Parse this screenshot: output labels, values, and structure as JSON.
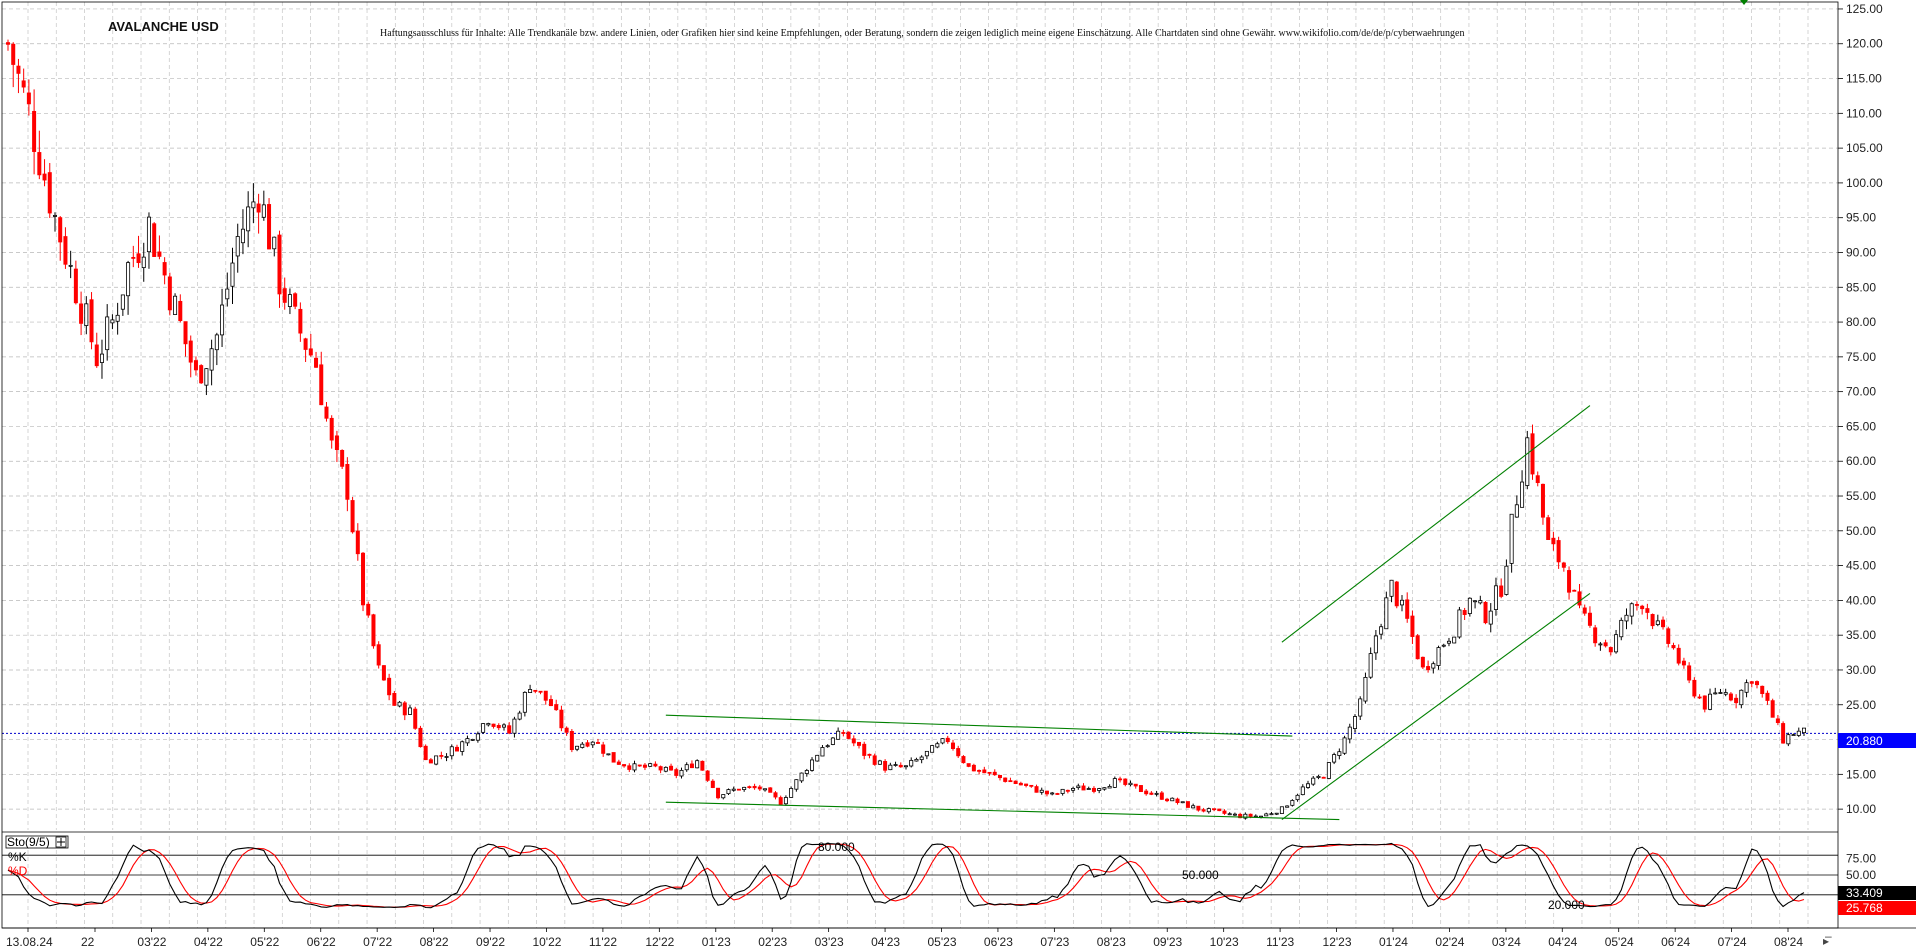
{
  "chart_data": [
    {
      "type": "candlestick",
      "title": "AVALANCHE USD",
      "subtitle": "Haftungsausschluss für Inhalte: Alle Trendkanäle bzw. andere Linien, oder Grafiken hier sind keine Empfehlungen, oder Beratung, sondern die zeigen lediglich meine eigene Einschätzung. Alle Chartdaten sind ohne Gewähr.  www.wikifolio.com/de/de/p/cyberwaehrungen",
      "x_tick_labels": [
        "13.08.24",
        "22",
        "03'22",
        "04'22",
        "05'22",
        "06'22",
        "07'22",
        "08'22",
        "09'22",
        "10'22",
        "11'22",
        "12'22",
        "01'23",
        "02'23",
        "03'23",
        "04'23",
        "05'23",
        "06'23",
        "07'23",
        "08'23",
        "09'23",
        "10'23",
        "11'23",
        "12'23",
        "01'24",
        "02'24",
        "03'24",
        "04'24",
        "05'24",
        "06'24",
        "07'24",
        "08'24"
      ],
      "y_ticks": [
        "125.00",
        "120.00",
        "115.00",
        "110.00",
        "105.00",
        "100.00",
        "95.00",
        "90.00",
        "85.00",
        "80.00",
        "75.00",
        "70.00",
        "65.00",
        "60.00",
        "55.00",
        "50.00",
        "45.00",
        "40.00",
        "35.00",
        "30.00",
        "25.00",
        "20.00",
        "15.00",
        "10.00"
      ],
      "ylim": [
        7,
        126
      ],
      "current_price": "20.880",
      "price_path": [
        [
          0,
          120
        ],
        [
          4,
          110
        ],
        [
          9,
          95
        ],
        [
          13,
          85
        ],
        [
          17,
          75
        ],
        [
          20,
          80
        ],
        [
          23,
          88
        ],
        [
          27,
          94
        ],
        [
          32,
          82
        ],
        [
          36,
          72
        ],
        [
          40,
          78
        ],
        [
          44,
          92
        ],
        [
          48,
          99
        ],
        [
          52,
          86
        ],
        [
          55,
          80
        ],
        [
          59,
          74
        ],
        [
          62,
          62
        ],
        [
          65,
          56
        ],
        [
          68,
          40
        ],
        [
          71,
          30
        ],
        [
          74,
          25
        ],
        [
          77,
          24
        ],
        [
          80,
          17
        ],
        [
          84,
          18
        ],
        [
          88,
          20
        ],
        [
          92,
          23
        ],
        [
          96,
          21
        ],
        [
          100,
          28
        ],
        [
          104,
          25
        ],
        [
          108,
          19
        ],
        [
          112,
          20
        ],
        [
          116,
          17
        ],
        [
          120,
          16
        ],
        [
          124,
          16
        ],
        [
          128,
          15
        ],
        [
          132,
          17
        ],
        [
          136,
          12
        ],
        [
          140,
          13
        ],
        [
          144,
          13
        ],
        [
          148,
          11
        ],
        [
          152,
          15
        ],
        [
          156,
          19
        ],
        [
          160,
          21
        ],
        [
          164,
          18
        ],
        [
          168,
          16
        ],
        [
          172,
          16
        ],
        [
          176,
          18
        ],
        [
          180,
          20
        ],
        [
          184,
          16
        ],
        [
          188,
          15
        ],
        [
          192,
          14
        ],
        [
          196,
          13
        ],
        [
          200,
          12
        ],
        [
          204,
          13
        ],
        [
          208,
          13
        ],
        [
          212,
          14
        ],
        [
          216,
          13
        ],
        [
          220,
          12
        ],
        [
          224,
          11
        ],
        [
          228,
          10
        ],
        [
          232,
          9.5
        ],
        [
          236,
          9
        ],
        [
          240,
          9
        ],
        [
          244,
          10
        ],
        [
          248,
          13
        ],
        [
          252,
          15
        ],
        [
          256,
          20
        ],
        [
          259,
          25
        ],
        [
          262,
          35
        ],
        [
          265,
          42
        ],
        [
          268,
          37
        ],
        [
          271,
          30
        ],
        [
          274,
          33
        ],
        [
          277,
          36
        ],
        [
          280,
          40
        ],
        [
          283,
          38
        ],
        [
          286,
          42
        ],
        [
          289,
          55
        ],
        [
          291,
          63
        ],
        [
          293,
          56
        ],
        [
          295,
          48
        ],
        [
          298,
          45
        ],
        [
          301,
          38
        ],
        [
          304,
          35
        ],
        [
          307,
          33
        ],
        [
          310,
          38
        ],
        [
          313,
          40
        ],
        [
          316,
          36
        ],
        [
          319,
          33
        ],
        [
          322,
          28
        ],
        [
          325,
          25
        ],
        [
          328,
          27
        ],
        [
          331,
          26
        ],
        [
          334,
          29
        ],
        [
          337,
          25
        ],
        [
          340,
          20
        ],
        [
          342,
          21
        ]
      ],
      "trendlines": [
        {
          "name": "upper-channel",
          "x1": 244,
          "y1": 34,
          "x2": 303,
          "y2": 68
        },
        {
          "name": "lower-channel",
          "x1": 244,
          "y1": 8.5,
          "x2": 303,
          "y2": 41
        },
        {
          "name": "range-top",
          "x1": 126,
          "y1": 23.5,
          "x2": 246,
          "y2": 20.5
        },
        {
          "name": "range-bottom",
          "x1": 126,
          "y1": 11,
          "x2": 255,
          "y2": 8.5
        }
      ]
    },
    {
      "type": "line",
      "title": "Sto(9/5)",
      "series": [
        {
          "name": "%K",
          "color": "#000000"
        },
        {
          "name": "%D",
          "color": "#ff0000"
        }
      ],
      "levels": [
        "80.000",
        "50.000",
        "20.000"
      ],
      "y_ticks": [
        "75.00",
        "50.00"
      ],
      "ylim": [
        0,
        100
      ],
      "last_values": {
        "k": "33.409",
        "d": "25.768"
      }
    }
  ],
  "colors": {
    "up": "#000000",
    "down": "#ff0000",
    "trend": "#008000",
    "price_line": "#0000cc",
    "badge_price": "#0000ff",
    "badge_k": "#000000",
    "badge_d": "#ff0000"
  }
}
